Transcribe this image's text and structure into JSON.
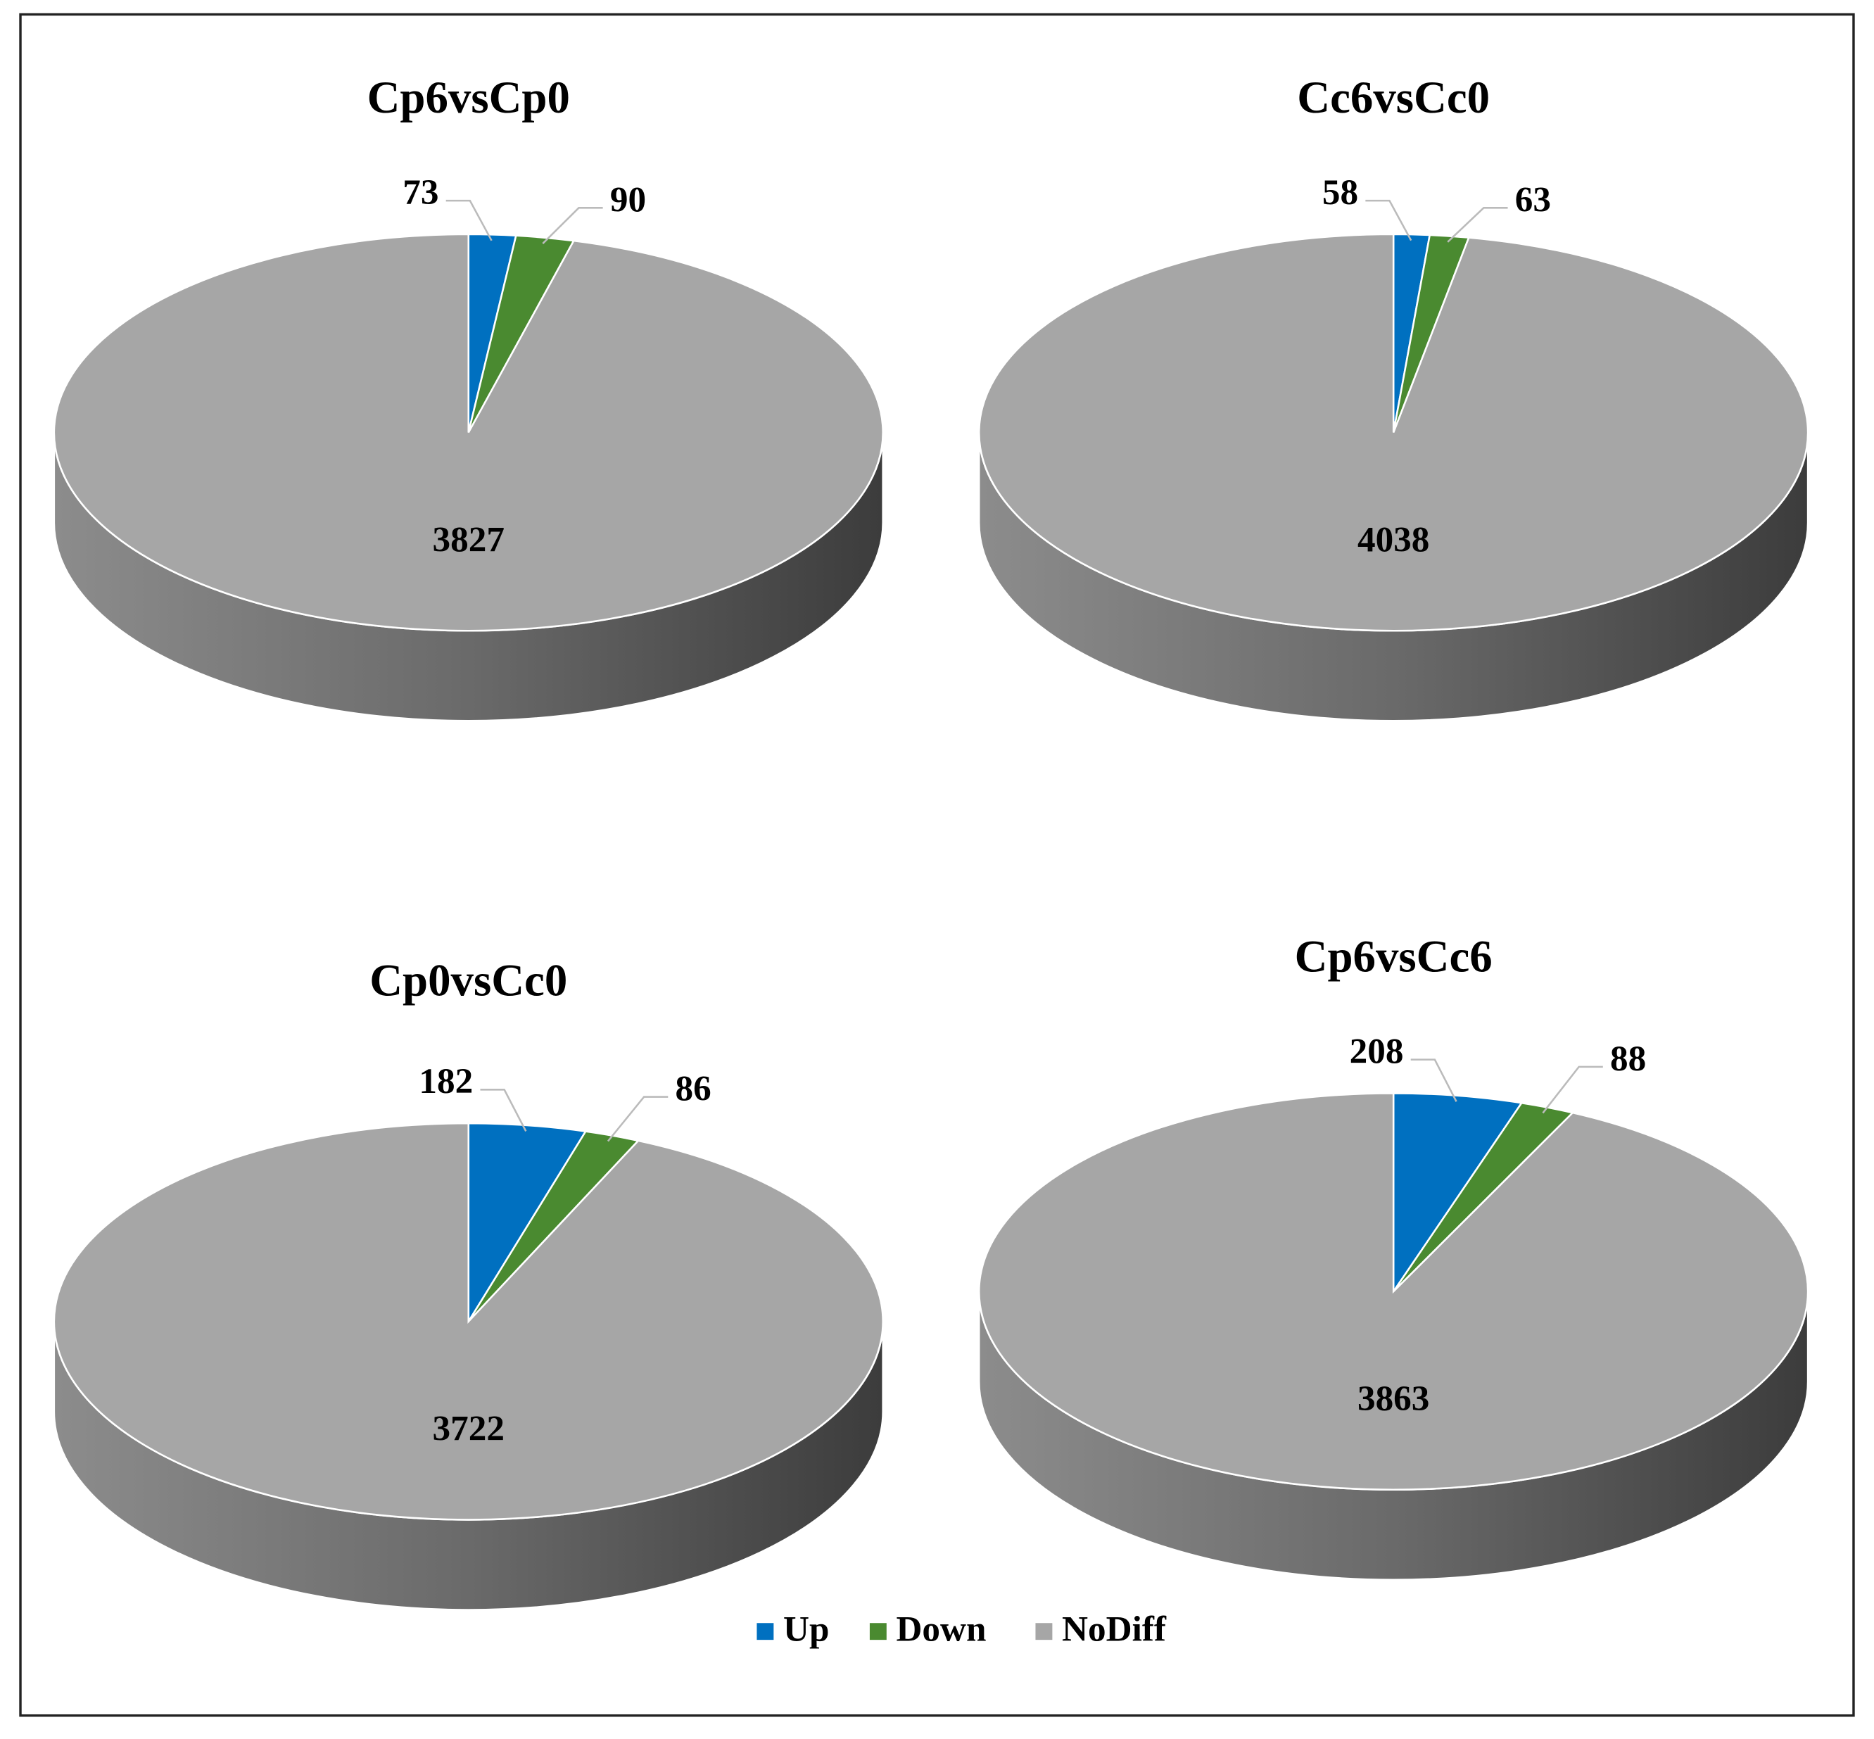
{
  "chart_data": [
    {
      "type": "pie",
      "title": "Cp6vsCp0",
      "values": [
        73,
        90,
        3827
      ]
    },
    {
      "type": "pie",
      "title": "Cc6vsCc0",
      "values": [
        58,
        63,
        4038
      ]
    },
    {
      "type": "pie",
      "title": "Cp0vsCc0",
      "values": [
        182,
        86,
        3722
      ]
    },
    {
      "type": "pie",
      "title": "Cp6vsCc6",
      "values": [
        208,
        88,
        3863
      ]
    }
  ],
  "legend": {
    "labels": [
      "Up",
      "Down",
      "NoDiff"
    ],
    "colors": [
      "#0070c0",
      "#4a8a30",
      "#a6a6a6"
    ]
  }
}
